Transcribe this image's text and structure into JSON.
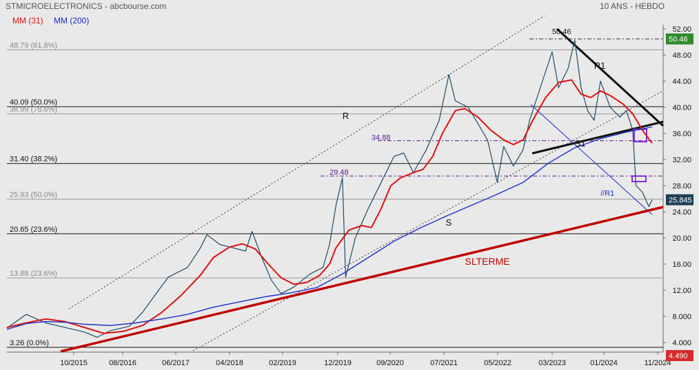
{
  "header": {
    "title": "STMICROELECTRONICS - abcbourse.com",
    "period": "10 ANS - HEBDO"
  },
  "legend": [
    {
      "label": "MM (31)",
      "color": "#dd1111"
    },
    {
      "label": "MM (200)",
      "color": "#1a2ccc"
    }
  ],
  "badges": {
    "high": "50.46",
    "last": "25.845",
    "low": "4.490"
  },
  "chart_data": {
    "type": "line",
    "x_ticks": [
      "10/2015",
      "08/2016",
      "06/2017",
      "04/2018",
      "02/2019",
      "12/2019",
      "09/2020",
      "07/2021",
      "05/2022",
      "03/2023",
      "01/2024",
      "11/2024"
    ],
    "y_ticks": [
      "52.00",
      "48.00",
      "44.00",
      "40.00",
      "36.00",
      "32.00",
      "28.00",
      "24.00",
      "20.00",
      "16.00",
      "12.00",
      "8.000",
      "4.000"
    ],
    "ylim": [
      2.5,
      53.5
    ],
    "series": [
      {
        "name": "",
        "color": "#1f4a66",
        "points": [
          [
            2015.0,
            6.2
          ],
          [
            2015.3,
            8.3
          ],
          [
            2015.6,
            7.0
          ],
          [
            2015.9,
            6.3
          ],
          [
            2016.2,
            5.6
          ],
          [
            2016.4,
            4.8
          ],
          [
            2016.6,
            5.8
          ],
          [
            2016.9,
            6.5
          ],
          [
            2017.1,
            8.6
          ],
          [
            2017.3,
            11.3
          ],
          [
            2017.5,
            14.0
          ],
          [
            2017.8,
            15.5
          ],
          [
            2018.0,
            18.5
          ],
          [
            2018.1,
            20.5
          ],
          [
            2018.3,
            19.0
          ],
          [
            2018.5,
            18.5
          ],
          [
            2018.7,
            18.0
          ],
          [
            2018.8,
            21.0
          ],
          [
            2018.95,
            17.0
          ],
          [
            2019.1,
            13.5
          ],
          [
            2019.25,
            11.5
          ],
          [
            2019.45,
            12.5
          ],
          [
            2019.7,
            14.5
          ],
          [
            2019.9,
            15.5
          ],
          [
            2020.0,
            19.0
          ],
          [
            2020.1,
            25.0
          ],
          [
            2020.2,
            29.2
          ],
          [
            2020.25,
            14.0
          ],
          [
            2020.4,
            20.0
          ],
          [
            2020.6,
            24.5
          ],
          [
            2020.8,
            28.5
          ],
          [
            2021.0,
            32.5
          ],
          [
            2021.15,
            33.0
          ],
          [
            2021.3,
            30.0
          ],
          [
            2021.5,
            33.5
          ],
          [
            2021.7,
            38.0
          ],
          [
            2021.85,
            45.0
          ],
          [
            2021.95,
            41.0
          ],
          [
            2022.15,
            40.0
          ],
          [
            2022.3,
            37.5
          ],
          [
            2022.45,
            35.0
          ],
          [
            2022.6,
            28.5
          ],
          [
            2022.7,
            34.0
          ],
          [
            2022.85,
            31.0
          ],
          [
            2023.0,
            33.5
          ],
          [
            2023.1,
            38.0
          ],
          [
            2023.3,
            44.0
          ],
          [
            2023.45,
            48.5
          ],
          [
            2023.55,
            43.0
          ],
          [
            2023.7,
            46.0
          ],
          [
            2023.8,
            50.3
          ],
          [
            2023.9,
            43.0
          ],
          [
            2024.0,
            39.5
          ],
          [
            2024.1,
            38.0
          ],
          [
            2024.2,
            44.0
          ],
          [
            2024.35,
            40.0
          ],
          [
            2024.5,
            38.5
          ],
          [
            2024.6,
            39.5
          ],
          [
            2024.7,
            36.5
          ],
          [
            2024.75,
            28.0
          ],
          [
            2024.85,
            27.0
          ],
          [
            2024.95,
            24.8
          ],
          [
            2025.0,
            25.845
          ]
        ]
      },
      {
        "name": "MM (31)",
        "color": "#dd1111",
        "points": [
          [
            2015.0,
            6.3
          ],
          [
            2015.3,
            7.0
          ],
          [
            2015.6,
            7.6
          ],
          [
            2015.9,
            7.2
          ],
          [
            2016.2,
            6.3
          ],
          [
            2016.5,
            5.4
          ],
          [
            2016.8,
            5.7
          ],
          [
            2017.1,
            6.6
          ],
          [
            2017.4,
            8.6
          ],
          [
            2017.7,
            11.2
          ],
          [
            2018.0,
            14.3
          ],
          [
            2018.2,
            17.0
          ],
          [
            2018.45,
            18.6
          ],
          [
            2018.65,
            19.1
          ],
          [
            2018.85,
            18.3
          ],
          [
            2019.05,
            16.0
          ],
          [
            2019.25,
            13.9
          ],
          [
            2019.45,
            12.9
          ],
          [
            2019.65,
            13.2
          ],
          [
            2019.85,
            14.3
          ],
          [
            2020.0,
            16.0
          ],
          [
            2020.1,
            18.5
          ],
          [
            2020.3,
            21.2
          ],
          [
            2020.5,
            21.9
          ],
          [
            2020.65,
            21.6
          ],
          [
            2020.8,
            24.5
          ],
          [
            2020.95,
            28.0
          ],
          [
            2021.1,
            29.2
          ],
          [
            2021.3,
            30.0
          ],
          [
            2021.45,
            30.5
          ],
          [
            2021.6,
            32.5
          ],
          [
            2021.75,
            36.0
          ],
          [
            2021.95,
            39.5
          ],
          [
            2022.1,
            39.8
          ],
          [
            2022.3,
            38.5
          ],
          [
            2022.5,
            36.5
          ],
          [
            2022.7,
            35.0
          ],
          [
            2022.85,
            34.3
          ],
          [
            2023.0,
            35.0
          ],
          [
            2023.15,
            38.0
          ],
          [
            2023.35,
            41.5
          ],
          [
            2023.55,
            43.8
          ],
          [
            2023.75,
            44.2
          ],
          [
            2023.9,
            42.0
          ],
          [
            2024.05,
            41.5
          ],
          [
            2024.2,
            42.5
          ],
          [
            2024.35,
            41.8
          ],
          [
            2024.55,
            40.5
          ],
          [
            2024.7,
            39.0
          ],
          [
            2024.85,
            36.5
          ],
          [
            2025.0,
            34.5
          ]
        ]
      },
      {
        "name": "MM (200)",
        "color": "#1a2ccc",
        "points": [
          [
            2015.0,
            6.0
          ],
          [
            2015.3,
            6.9
          ],
          [
            2015.6,
            7.2
          ],
          [
            2015.9,
            7.1
          ],
          [
            2016.2,
            6.8
          ],
          [
            2016.6,
            6.6
          ],
          [
            2017.0,
            7.0
          ],
          [
            2017.4,
            7.6
          ],
          [
            2017.8,
            8.3
          ],
          [
            2018.2,
            9.4
          ],
          [
            2018.6,
            10.2
          ],
          [
            2019.0,
            11.0
          ],
          [
            2019.4,
            11.6
          ],
          [
            2019.8,
            12.4
          ],
          [
            2020.2,
            14.5
          ],
          [
            2020.6,
            17.0
          ],
          [
            2021.0,
            19.5
          ],
          [
            2021.4,
            21.5
          ],
          [
            2021.8,
            23.3
          ],
          [
            2022.2,
            25.0
          ],
          [
            2022.6,
            26.7
          ],
          [
            2023.0,
            28.5
          ],
          [
            2023.4,
            31.5
          ],
          [
            2023.8,
            33.8
          ],
          [
            2024.2,
            35.2
          ],
          [
            2024.6,
            36.2
          ],
          [
            2025.0,
            37.0
          ]
        ]
      }
    ],
    "annotations": [
      {
        "text": "R",
        "x": 2020.2,
        "y": 38.2,
        "color": "#111111"
      },
      {
        "text": "R1",
        "x": 2024.1,
        "y": 45.9,
        "color": "#111111"
      },
      {
        "text": "S1",
        "x": 2023.8,
        "y": 34.0,
        "color": "#111111"
      },
      {
        "text": "S",
        "x": 2021.8,
        "y": 21.9,
        "color": "#111111"
      },
      {
        "text": "//R1",
        "x": 2024.2,
        "y": 26.5,
        "color": "#1a2ccc"
      },
      {
        "text": "SLTERME",
        "x": 2022.1,
        "y": 15.9,
        "color": "#c00000"
      },
      {
        "text": "50.46",
        "x": 2023.45,
        "y": 51.2,
        "color": "#111111"
      },
      {
        "text": "34.88",
        "x": 2020.65,
        "y": 35.0,
        "color": "#5a1a8a"
      },
      {
        "text": "29.48",
        "x": 2020.0,
        "y": 29.7,
        "color": "#5a1a8a"
      }
    ],
    "levels": [
      {
        "text": "48.79  (61.8%)",
        "value": 48.79,
        "style": "gray"
      },
      {
        "text": "40.09  (50.0%)",
        "value": 40.09,
        "style": "dark"
      },
      {
        "text": "38.99  (78.6%)",
        "value": 38.99,
        "style": "gray"
      },
      {
        "text": "31.40  (38.2%)",
        "value": 31.4,
        "style": "dark"
      },
      {
        "text": "25.93  (50.0%)",
        "value": 25.93,
        "style": "gray"
      },
      {
        "text": "20.65  (23.6%)",
        "value": 20.65,
        "style": "dark"
      },
      {
        "text": "13.88  (23.6%)",
        "value": 13.88,
        "style": "gray"
      },
      {
        "text": "3.26  (0.0%)",
        "value": 3.26,
        "style": "dark"
      }
    ]
  }
}
